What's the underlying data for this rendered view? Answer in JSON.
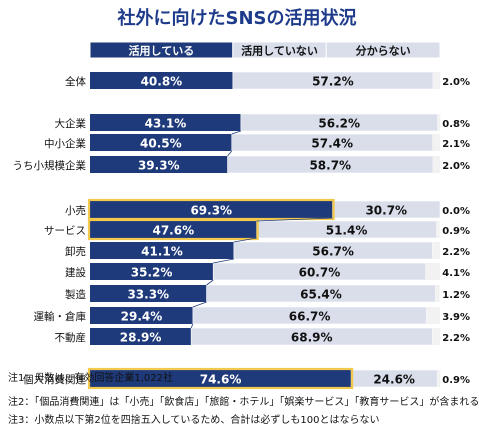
{
  "chart_data": {
    "type": "bar",
    "stacked": true,
    "orientation": "horizontal",
    "title": "社外に向けたSNSの活用状況",
    "legend": [
      "活用している",
      "活用していない",
      "分からない"
    ],
    "legend_placement": "top",
    "colors": {
      "used": "#1f3a7a",
      "not_used": "#d9deea",
      "unknown": "#f2f2f2",
      "highlight": "#f2c94c",
      "connector": "#1f3a7a"
    },
    "xlim": [
      0,
      100
    ],
    "categories": [
      "全体",
      "大企業",
      "中小企業",
      "うち小規模企業",
      "小売",
      "サービス",
      "卸売",
      "建設",
      "製造",
      "運輸・倉庫",
      "不動産",
      "個人消費関連"
    ],
    "value_labels": {
      "used": [
        "40.8%",
        "43.1%",
        "40.5%",
        "39.3%",
        "69.3%",
        "47.6%",
        "41.1%",
        "35.2%",
        "33.3%",
        "29.4%",
        "28.9%",
        "74.6%"
      ],
      "not_used": [
        "57.2%",
        "56.2%",
        "57.4%",
        "58.7%",
        "30.7%",
        "51.4%",
        "56.7%",
        "60.7%",
        "65.4%",
        "66.7%",
        "68.9%",
        "24.6%"
      ],
      "unknown": [
        "2.0%",
        "0.8%",
        "2.1%",
        "2.0%",
        "0.0%",
        "0.9%",
        "2.2%",
        "4.1%",
        "1.2%",
        "3.9%",
        "2.2%",
        "0.9%"
      ]
    },
    "series": [
      {
        "name": "活用している",
        "values": [
          40.8,
          43.1,
          40.5,
          39.3,
          69.3,
          47.6,
          41.1,
          35.2,
          33.3,
          29.4,
          28.9,
          74.6
        ]
      },
      {
        "name": "活用していない",
        "values": [
          57.2,
          56.2,
          57.4,
          58.7,
          30.7,
          51.4,
          56.7,
          60.7,
          65.4,
          66.7,
          68.9,
          24.6
        ]
      },
      {
        "name": "分からない",
        "values": [
          2.0,
          0.8,
          2.1,
          2.0,
          0.0,
          0.9,
          2.2,
          4.1,
          1.2,
          3.9,
          2.2,
          0.9
        ]
      }
    ],
    "highlighted": [
      "小売",
      "サービス",
      "個人消費関連"
    ],
    "notes": [
      "注1：母数は、有効回答企業1,022社",
      "注2：「個品消費関連」は「小売」「飲食店」「旅館・ホテル」「娯楽サービス」「教育サービス」が含まれる",
      "注3：小数点以下第2位を四捨五入しているため、合計は必ずしも100とはならない"
    ]
  }
}
